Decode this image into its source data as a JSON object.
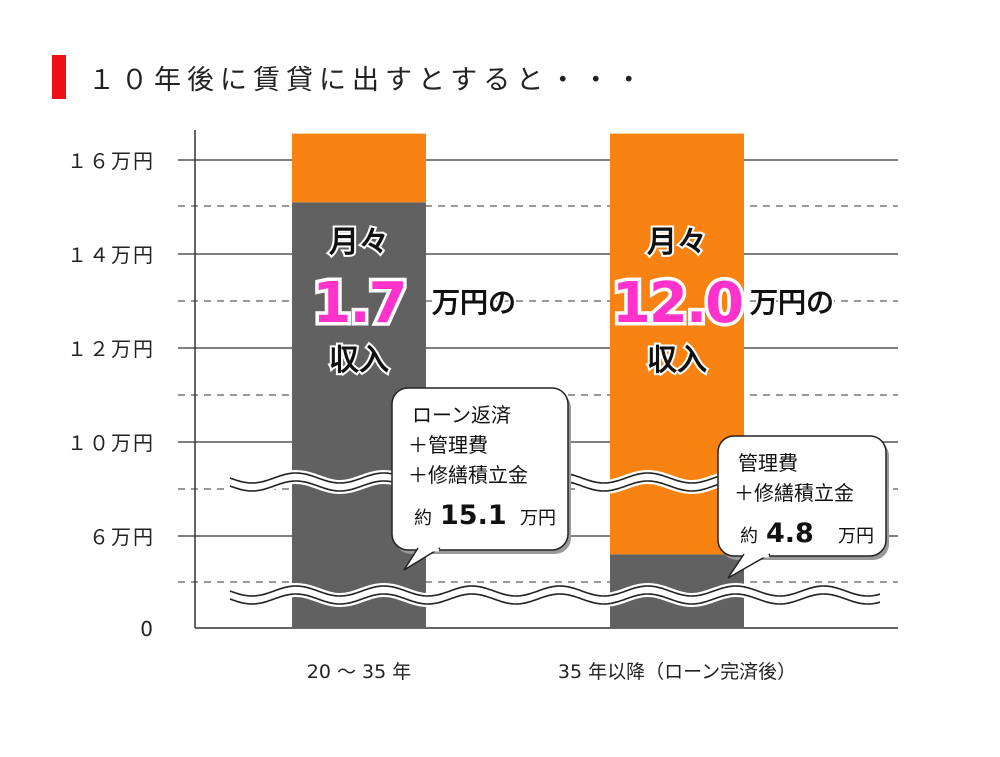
{
  "title": "１０年後に賃貸に出すとすると・・・",
  "colors": {
    "accent": "#ee1111",
    "orange": "#f88312",
    "gray": "#616161",
    "magenta": "#ff33cc"
  },
  "chart_data": {
    "type": "bar",
    "stacked": true,
    "title": "１０年後に賃貸に出すとすると・・・",
    "y_ticks": [
      "0",
      "６万円",
      "１０万円",
      "１２万円",
      "１４万円",
      "１６万円"
    ],
    "y_tick_values": [
      0,
      6,
      10,
      12,
      14,
      16
    ],
    "categories": [
      "20 ～ 35 年",
      "35 年以降（ローン完済後）"
    ],
    "series": [
      {
        "name": "cost",
        "color": "#616161",
        "values": [
          15.1,
          4.8
        ]
      },
      {
        "name": "income",
        "color": "#f88312",
        "values": [
          1.7,
          12.0
        ]
      }
    ],
    "income_labels": [
      {
        "prefix": "月々",
        "value": "1.7",
        "unit": "万円の",
        "suffix": "収入"
      },
      {
        "prefix": "月々",
        "value": "12.0",
        "unit": "万円の",
        "suffix": "収入"
      }
    ],
    "callouts": [
      {
        "lines": [
          "ローン返済",
          "＋管理費",
          "＋修繕積立金"
        ],
        "prefix": "約",
        "value": "15.1",
        "unit": "万円"
      },
      {
        "lines": [
          "管理費",
          "＋修繕積立金"
        ],
        "prefix": "約",
        "value": "4.8",
        "unit": "万円"
      }
    ],
    "axis_break": true
  }
}
